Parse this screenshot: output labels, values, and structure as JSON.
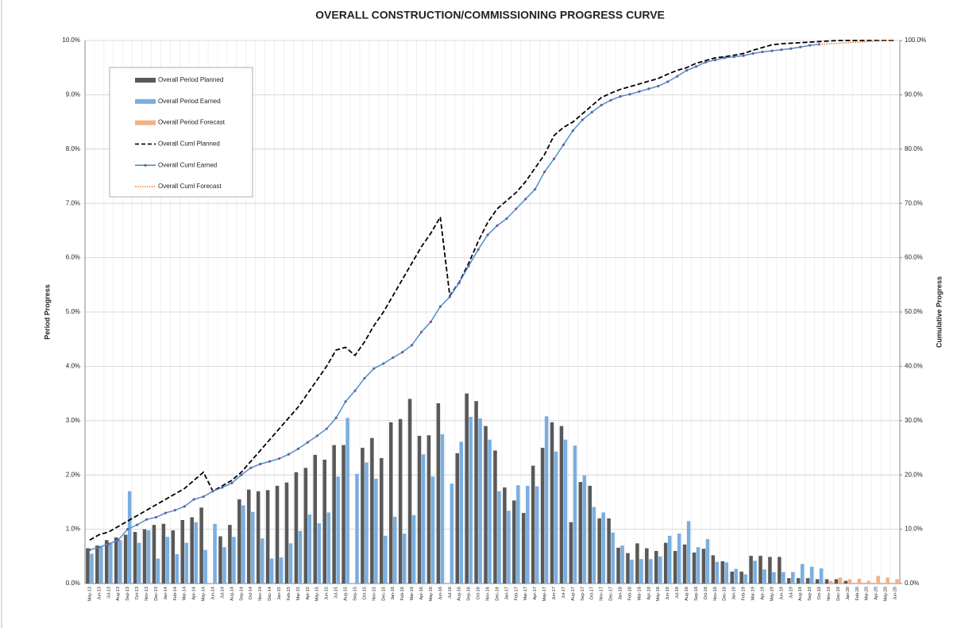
{
  "chart_data": {
    "type": "combo",
    "title": "OVERALL CONSTRUCTION/COMMISSIONING PROGRESS CURVE",
    "y_label": "Period Progress",
    "y2_label": "Cumulative Progress",
    "categories": [
      "May-13",
      "Jun-13",
      "Jul-13",
      "Aug-13",
      "Sep-13",
      "Oct-13",
      "Nov-13",
      "Dec-13",
      "Jan-14",
      "Feb-14",
      "Mar-14",
      "Apr-14",
      "May-14",
      "Jun-14",
      "Jul-14",
      "Aug-14",
      "Sep-14",
      "Oct-14",
      "Nov-14",
      "Dec-14",
      "Jan-15",
      "Feb-15",
      "Mar-15",
      "Apr-15",
      "May-15",
      "Jun-15",
      "Jul-15",
      "Aug-15",
      "Sep-15",
      "Oct-15",
      "Nov-15",
      "Dec-15",
      "Jan-16",
      "Feb-16",
      "Mar-16",
      "Apr-16",
      "May-16",
      "Jun-16",
      "Jul-16",
      "Aug-16",
      "Sep-16",
      "Oct-16",
      "Nov-16",
      "Dec-16",
      "Jan-17",
      "Feb-17",
      "Mar-17",
      "Apr-17",
      "May-17",
      "Jun-17",
      "Jul-17",
      "Aug-17",
      "Sep-17",
      "Oct-17",
      "Nov-17",
      "Dec-17",
      "Jan-18",
      "Feb-18",
      "Mar-18",
      "Apr-18",
      "May-18",
      "Jun-18",
      "Jul-18",
      "Aug-18",
      "Sep-18",
      "Oct-18",
      "Nov-18",
      "Dec-18",
      "Jan-19",
      "Feb-19",
      "Mar-19",
      "Apr-19",
      "May-19",
      "Jun-19",
      "Jul-19",
      "Aug-19",
      "Sep-19",
      "Oct-19",
      "Nov-19",
      "Dec-19",
      "Jan-20",
      "Feb-20",
      "Mar-20",
      "Apr-20",
      "May-20",
      "Jun-20"
    ],
    "ylim": [
      0,
      10
    ],
    "yticks": [
      {
        "value": 0,
        "label": "0.0%"
      },
      {
        "value": 1,
        "label": "1.0%"
      },
      {
        "value": 2,
        "label": "2.0%"
      },
      {
        "value": 3,
        "label": "3.0%"
      },
      {
        "value": 4,
        "label": "4.0%"
      },
      {
        "value": 5,
        "label": "5.0%"
      },
      {
        "value": 6,
        "label": "6.0%"
      },
      {
        "value": 7,
        "label": "7.0%"
      },
      {
        "value": 8,
        "label": "8.0%"
      },
      {
        "value": 9,
        "label": "9.0%"
      },
      {
        "value": 10,
        "label": "10.0%"
      }
    ],
    "y2lim": [
      0,
      100
    ],
    "y2ticks": [
      {
        "value": 0,
        "label": "0.0%"
      },
      {
        "value": 10,
        "label": "10.0%"
      },
      {
        "value": 20,
        "label": "20.0%"
      },
      {
        "value": 30,
        "label": "30.0%"
      },
      {
        "value": 40,
        "label": "40.0%"
      },
      {
        "value": 50,
        "label": "50.0%"
      },
      {
        "value": 60,
        "label": "60.0%"
      },
      {
        "value": 70,
        "label": "70.0%"
      },
      {
        "value": 80,
        "label": "80.0%"
      },
      {
        "value": 90,
        "label": "90.0%"
      },
      {
        "value": 100,
        "label": "100.0%"
      }
    ],
    "grid": true,
    "series": [
      {
        "name": "Overall Period Planned",
        "type": "bar",
        "color": "#595959",
        "values": [
          0.65,
          0.7,
          0.8,
          0.85,
          0.9,
          0.95,
          1.0,
          1.08,
          1.1,
          0.98,
          1.17,
          1.22,
          1.4,
          null,
          0.87,
          1.08,
          1.55,
          1.73,
          1.7,
          1.72,
          1.8,
          1.86,
          2.05,
          2.13,
          2.37,
          2.28,
          2.55,
          2.55,
          null,
          2.5,
          2.68,
          2.31,
          2.97,
          3.03,
          3.4,
          2.72,
          2.73,
          3.32,
          null,
          2.4,
          3.5,
          3.36,
          2.9,
          2.45,
          1.77,
          1.53,
          1.3,
          2.17,
          2.5,
          2.97,
          2.9,
          1.13,
          1.87,
          1.8,
          1.2,
          1.2,
          0.66,
          0.56,
          0.74,
          0.65,
          0.6,
          0.75,
          0.6,
          0.72,
          0.57,
          0.64,
          0.52,
          0.41,
          0.22,
          0.22,
          0.51,
          0.51,
          0.49,
          0.49,
          0.1,
          0.1,
          0.1,
          0.08,
          0.08,
          0.08,
          0.05,
          null,
          null,
          null,
          null,
          null
        ]
      },
      {
        "name": "Overall Period Earned",
        "type": "bar",
        "color": "#7aaee0",
        "values": [
          0.55,
          0.68,
          0.75,
          0.8,
          1.7,
          0.75,
          0.98,
          0.46,
          0.86,
          0.54,
          0.75,
          1.13,
          0.62,
          1.1,
          0.67,
          0.86,
          1.44,
          1.32,
          0.83,
          0.46,
          0.48,
          0.74,
          0.97,
          1.27,
          1.11,
          1.31,
          1.97,
          3.05,
          2.02,
          2.23,
          1.93,
          0.88,
          1.23,
          0.92,
          1.26,
          2.38,
          1.97,
          2.75,
          1.84,
          2.61,
          3.07,
          3.04,
          2.65,
          1.7,
          1.34,
          1.81,
          1.8,
          1.79,
          3.08,
          2.43,
          2.65,
          2.54,
          1.99,
          1.41,
          1.31,
          0.94,
          0.7,
          0.44,
          0.45,
          0.45,
          0.5,
          0.88,
          0.92,
          1.15,
          0.67,
          0.82,
          0.4,
          0.39,
          0.27,
          0.17,
          0.42,
          0.26,
          0.21,
          0.21,
          0.21,
          0.36,
          0.31,
          0.28,
          null,
          null,
          null,
          null,
          null,
          null,
          null,
          null
        ]
      },
      {
        "name": "Overall Period Forecast",
        "type": "bar",
        "color": "#f4b183",
        "values": [
          null,
          null,
          null,
          null,
          null,
          null,
          null,
          null,
          null,
          null,
          null,
          null,
          null,
          null,
          null,
          null,
          null,
          null,
          null,
          null,
          null,
          null,
          null,
          null,
          null,
          null,
          null,
          null,
          null,
          null,
          null,
          null,
          null,
          null,
          null,
          null,
          null,
          null,
          null,
          null,
          null,
          null,
          null,
          null,
          null,
          null,
          null,
          null,
          null,
          null,
          null,
          null,
          null,
          null,
          null,
          null,
          null,
          null,
          null,
          null,
          null,
          null,
          null,
          null,
          null,
          null,
          null,
          null,
          null,
          null,
          null,
          null,
          null,
          null,
          null,
          null,
          null,
          null,
          0.05,
          0.11,
          0.08,
          0.09,
          0.05,
          0.14,
          0.11,
          0.08
        ]
      },
      {
        "name": "Overall Cuml Planned",
        "type": "line",
        "axis": "y2",
        "color": "#000000",
        "style": "dashed",
        "values": [
          8,
          9,
          9.5,
          10.5,
          11.5,
          12.5,
          13.5,
          14.5,
          15.5,
          16.5,
          17.5,
          19,
          20.5,
          17,
          18,
          19,
          20.5,
          22.5,
          24.5,
          26.5,
          28.5,
          30.5,
          32.5,
          35,
          37.5,
          40,
          43,
          43.5,
          42,
          44.5,
          47.5,
          50,
          53,
          56,
          59,
          62,
          64.5,
          67.5,
          53,
          55.5,
          59,
          63,
          66.5,
          69,
          70.5,
          72,
          74,
          76.5,
          79,
          82.5,
          84,
          85,
          86.5,
          88,
          89.5,
          90.3,
          91,
          91.5,
          92,
          92.5,
          93,
          93.8,
          94.5,
          95,
          95.8,
          96.3,
          96.8,
          97,
          97.3,
          97.6,
          98.2,
          98.7,
          99.2,
          99.4,
          99.5,
          99.6,
          99.7,
          99.8,
          99.9,
          100,
          100,
          100,
          100,
          100,
          100,
          100
        ]
      },
      {
        "name": "Overall Cuml Earned",
        "type": "line",
        "axis": "y2",
        "color": "#4a90d0",
        "style": "solid",
        "markers": true,
        "values": [
          6.2,
          6.7,
          7.3,
          8,
          10,
          10.8,
          11.8,
          12.2,
          13,
          13.5,
          14.2,
          15.5,
          16,
          17,
          17.7,
          18.5,
          20,
          21.3,
          22,
          22.5,
          23,
          23.8,
          24.8,
          26,
          27.2,
          28.5,
          30.5,
          33.5,
          35.5,
          37.8,
          39.6,
          40.5,
          41.6,
          42.6,
          43.9,
          46.3,
          48.2,
          51,
          52.8,
          55.4,
          58.5,
          61.5,
          64.2,
          65.9,
          67.2,
          69,
          70.8,
          72.6,
          75.8,
          78.2,
          80.8,
          83.4,
          85.4,
          86.8,
          88.1,
          89,
          89.7,
          90.1,
          90.6,
          91.1,
          91.6,
          92.4,
          93.4,
          94.5,
          95.2,
          96,
          96.4,
          96.8,
          97,
          97.2,
          97.6,
          97.9,
          98.1,
          98.3,
          98.5,
          98.8,
          99.1,
          99.3,
          null,
          null,
          null,
          null,
          null,
          null,
          null,
          null
        ]
      },
      {
        "name": "Overall Cuml Forecast",
        "type": "line",
        "axis": "y2",
        "color": "#ed7d31",
        "style": "dotted",
        "values": [
          null,
          null,
          null,
          null,
          null,
          null,
          null,
          null,
          null,
          null,
          null,
          null,
          null,
          null,
          null,
          null,
          null,
          null,
          null,
          null,
          null,
          null,
          null,
          null,
          null,
          null,
          null,
          null,
          null,
          null,
          null,
          null,
          null,
          null,
          null,
          null,
          null,
          null,
          null,
          null,
          null,
          null,
          null,
          null,
          null,
          null,
          null,
          null,
          null,
          null,
          null,
          null,
          null,
          null,
          null,
          null,
          null,
          null,
          null,
          null,
          null,
          null,
          null,
          null,
          null,
          null,
          null,
          null,
          null,
          null,
          null,
          null,
          null,
          null,
          null,
          null,
          null,
          99.3,
          99.4,
          99.5,
          99.6,
          99.7,
          99.8,
          99.9,
          100,
          100
        ]
      }
    ]
  }
}
